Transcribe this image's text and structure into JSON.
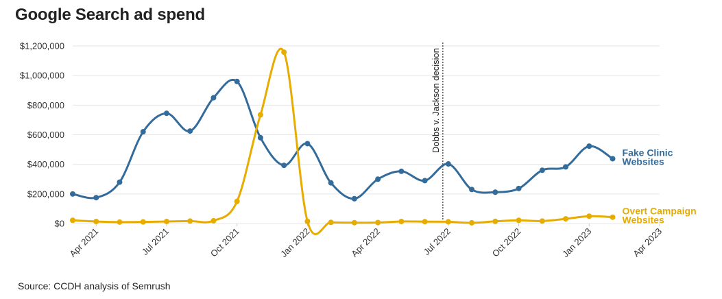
{
  "title": "Google Search ad spend",
  "source": "Source: CCDH analysis of Semrush",
  "colors": {
    "fake_clinic": "#336b9b",
    "overt_campaign": "#e6ac00",
    "grid": "#e6e6e6",
    "text": "#222222"
  },
  "chart_data": {
    "type": "line",
    "title": "Google Search ad spend",
    "xlabel": "",
    "ylabel": "",
    "ylim": [
      0,
      1200000
    ],
    "xlim": [
      "2021-03",
      "2023-04"
    ],
    "grid": true,
    "legend": "inline-right",
    "y_ticks": [
      {
        "value": 0,
        "label": "$0"
      },
      {
        "value": 200000,
        "label": "$200,000"
      },
      {
        "value": 400000,
        "label": "$400,000"
      },
      {
        "value": 600000,
        "label": "$600,000"
      },
      {
        "value": 800000,
        "label": "$800,000"
      },
      {
        "value": 1000000,
        "label": "$1,000,000"
      },
      {
        "value": 1200000,
        "label": "$1,200,000"
      }
    ],
    "x_ticks": [
      {
        "value": "2021-04",
        "label": "Apr 2021"
      },
      {
        "value": "2021-07",
        "label": "Jul 2021"
      },
      {
        "value": "2021-10",
        "label": "Oct 2021"
      },
      {
        "value": "2022-01",
        "label": "Jan 2022"
      },
      {
        "value": "2022-04",
        "label": "Apr 2022"
      },
      {
        "value": "2022-07",
        "label": "Jul 2022"
      },
      {
        "value": "2022-10",
        "label": "Oct 2022"
      },
      {
        "value": "2023-01",
        "label": "Jan 2023"
      },
      {
        "value": "2023-04",
        "label": "Apr 2023"
      }
    ],
    "x": [
      "2021-03",
      "2021-04",
      "2021-05",
      "2021-06",
      "2021-07",
      "2021-08",
      "2021-09",
      "2021-10",
      "2021-11",
      "2021-12",
      "2022-01",
      "2022-02",
      "2022-03",
      "2022-04",
      "2022-05",
      "2022-06",
      "2022-07",
      "2022-08",
      "2022-09",
      "2022-10",
      "2022-11",
      "2022-12",
      "2023-01",
      "2023-02"
    ],
    "series": [
      {
        "name": "Fake Clinic Websites",
        "label_lines": [
          "Fake Clinic",
          "Websites"
        ],
        "color": "#336b9b",
        "values": [
          200000,
          175000,
          280000,
          620000,
          745000,
          625000,
          850000,
          960000,
          580000,
          393000,
          540000,
          275000,
          168000,
          300000,
          353000,
          290000,
          403000,
          230000,
          212000,
          237000,
          360000,
          383000,
          523000,
          438000
        ]
      },
      {
        "name": "Overt Campaign Websites",
        "label_lines": [
          "Overt Campaign",
          "Websites"
        ],
        "color": "#e6ac00",
        "values": [
          22000,
          14000,
          10000,
          11000,
          14000,
          17000,
          19000,
          150000,
          735000,
          1158000,
          15000,
          8000,
          6000,
          7000,
          14000,
          13000,
          12000,
          5000,
          15000,
          22000,
          17000,
          32000,
          50000,
          43000
        ]
      }
    ],
    "annotations": [
      {
        "x": "2022-06-24",
        "text": "Dobbs v. Jackson decision",
        "style": "dotted-vertical-line"
      }
    ]
  }
}
